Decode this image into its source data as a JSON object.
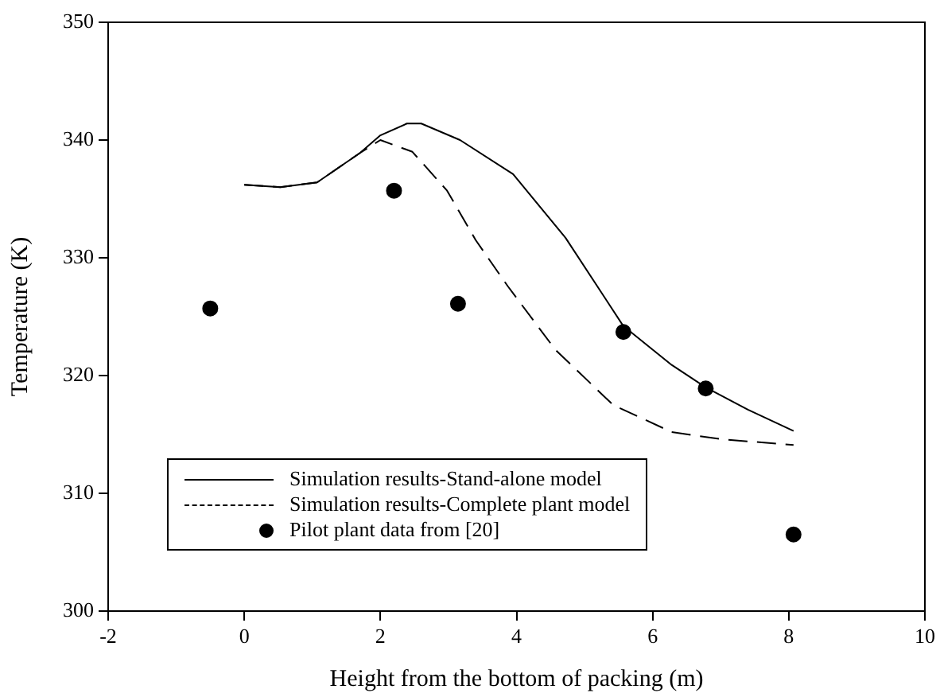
{
  "chart_data": {
    "type": "line",
    "xlabel": "Height from the bottom of packing (m)",
    "ylabel": "Temperature (K)",
    "xlim": [
      -2,
      10
    ],
    "xticks": [
      -2,
      0,
      2,
      4,
      6,
      8,
      10
    ],
    "ylim": [
      300,
      350
    ],
    "yticks": [
      300,
      310,
      320,
      330,
      340,
      350
    ],
    "grid": false,
    "legend": "bottom left",
    "series": [
      {
        "name": "Simulation results-Stand-alone model",
        "line_style": "solid",
        "marker": "none",
        "color": "#000000",
        "x": [
          0,
          0.53,
          1.07,
          1.7,
          2.0,
          2.39,
          2.6,
          3.17,
          3.95,
          4.72,
          5.57,
          6.28,
          6.78,
          7.4,
          8.07
        ],
        "values": [
          336.2,
          336.0,
          336.4,
          338.9,
          340.4,
          341.4,
          341.4,
          340.0,
          337.1,
          331.7,
          324.2,
          320.9,
          319.0,
          317.1,
          315.3
        ]
      },
      {
        "name": "Simulation results-Complete plant model",
        "line_style": "dashed",
        "marker": "none",
        "color": "#000000",
        "x": [
          0,
          0.53,
          1.07,
          1.7,
          2.0,
          2.47,
          2.98,
          3.4,
          3.87,
          4.57,
          5.42,
          6.28,
          7.0,
          8.07
        ],
        "values": [
          336.2,
          336.0,
          336.4,
          338.9,
          340.0,
          339.0,
          335.7,
          331.5,
          327.6,
          322.2,
          317.5,
          315.2,
          314.6,
          314.1
        ]
      },
      {
        "name": "Pilot plant data from [20]",
        "type": "scatter",
        "marker": "circle",
        "color": "#000000",
        "x": [
          -0.5,
          2.2,
          3.14,
          5.57,
          6.78,
          8.07
        ],
        "values": [
          325.7,
          335.7,
          326.1,
          323.7,
          318.9,
          306.5
        ]
      }
    ]
  }
}
